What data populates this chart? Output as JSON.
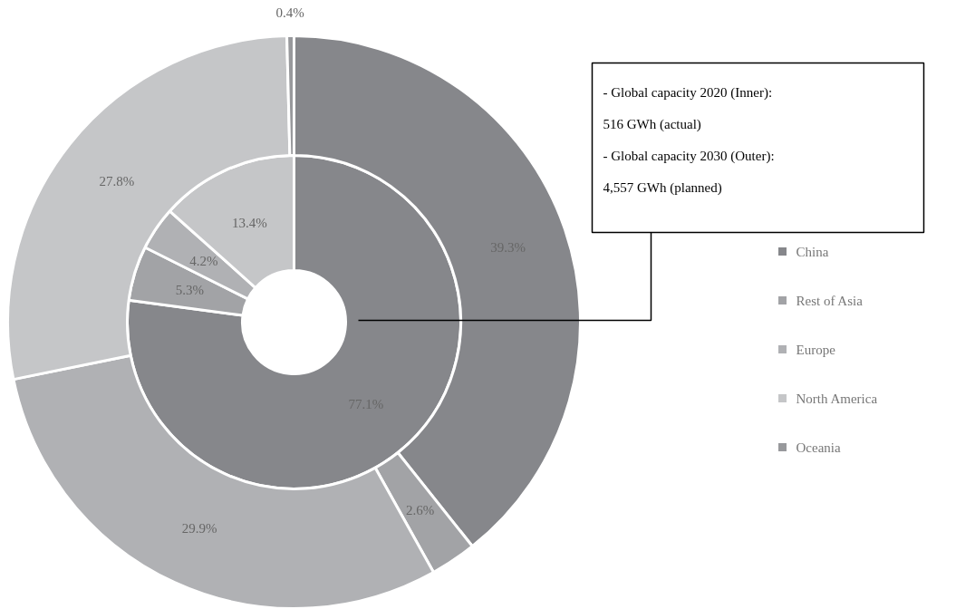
{
  "chart_data": {
    "type": "donut",
    "categories": [
      "China",
      "Rest of Asia",
      "Europe",
      "North America",
      "Oceania"
    ],
    "colors": [
      "#86878b",
      "#a2a3a6",
      "#b0b1b4",
      "#c5c6c8",
      "#98999c"
    ],
    "series": [
      {
        "values": [
          77.1,
          5.3,
          4.2,
          13.4,
          null
        ],
        "value_labels": [
          "77.1%",
          "5.3%",
          "4.2%",
          "13.4%",
          null
        ]
      },
      {
        "values": [
          39.3,
          2.6,
          29.9,
          27.8,
          0.4
        ],
        "value_labels": [
          "39.3%",
          "2.6%",
          "29.9%",
          "27.8%",
          "0.4%"
        ]
      }
    ],
    "legend": "right",
    "annotations": [
      "- Global capacity 2020 (Inner):\n516 GWh (actual)",
      "- Global capacity 2030 (Outer):\n4,557 GWh (planned)"
    ]
  }
}
